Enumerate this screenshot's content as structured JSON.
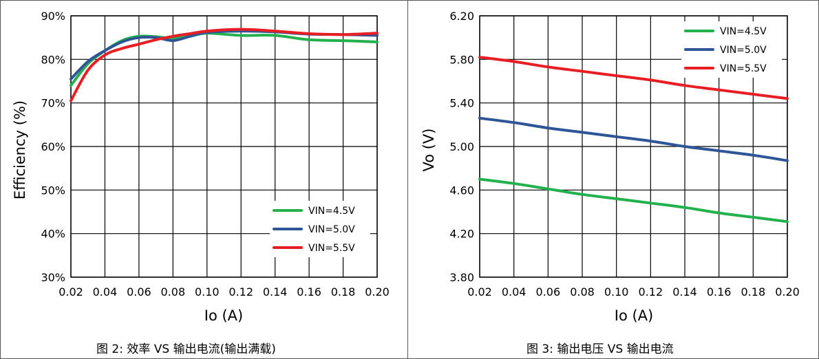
{
  "chart_data": [
    {
      "type": "line",
      "caption": "图 2: 效率 VS 输出电流(输出满载)",
      "xlabel": "Io (A)",
      "ylabel": "Efficiency (%)",
      "xlim": [
        0.02,
        0.2
      ],
      "ylim": [
        30,
        90
      ],
      "x_ticks": [
        "0.02",
        "0.04",
        "0.06",
        "0.08",
        "0.10",
        "0.12",
        "0.14",
        "0.16",
        "0.18",
        "0.20"
      ],
      "y_ticks": [
        "30%",
        "40%",
        "50%",
        "60%",
        "70%",
        "80%",
        "90%"
      ],
      "grid": true,
      "legend_position": "bottom-right",
      "series": [
        {
          "name": "VIN=4.5V",
          "color": "#22b14c",
          "x": [
            0.02,
            0.03,
            0.04,
            0.05,
            0.06,
            0.07,
            0.08,
            0.09,
            0.1,
            0.12,
            0.14,
            0.16,
            0.18,
            0.2
          ],
          "y": [
            74.0,
            79.0,
            82.0,
            84.3,
            85.3,
            85.2,
            84.8,
            85.3,
            86.0,
            85.5,
            85.5,
            84.5,
            84.3,
            84.0
          ]
        },
        {
          "name": "VIN=5.0V",
          "color": "#2e5596",
          "x": [
            0.02,
            0.03,
            0.04,
            0.05,
            0.06,
            0.07,
            0.08,
            0.09,
            0.1,
            0.12,
            0.14,
            0.16,
            0.18,
            0.2
          ],
          "y": [
            75.5,
            79.5,
            82.0,
            84.0,
            85.0,
            85.0,
            84.3,
            85.3,
            86.2,
            86.5,
            86.3,
            85.8,
            85.7,
            85.5
          ]
        },
        {
          "name": "VIN=5.5V",
          "color": "#e81e25",
          "x": [
            0.02,
            0.03,
            0.04,
            0.05,
            0.06,
            0.07,
            0.08,
            0.09,
            0.1,
            0.12,
            0.14,
            0.16,
            0.18,
            0.2
          ],
          "y": [
            70.5,
            77.5,
            81.0,
            82.5,
            83.5,
            84.5,
            85.3,
            85.9,
            86.5,
            86.9,
            86.5,
            85.9,
            85.7,
            86.0
          ]
        }
      ]
    },
    {
      "type": "line",
      "caption": "图 3: 输出电压 VS 输出电流",
      "xlabel": "Io (A)",
      "ylabel": "Vo (V)",
      "xlim": [
        0.02,
        0.2
      ],
      "ylim": [
        3.8,
        6.2
      ],
      "x_ticks": [
        "0.02",
        "0.04",
        "0.06",
        "0.08",
        "0.10",
        "0.12",
        "0.14",
        "0.16",
        "0.18",
        "0.20"
      ],
      "y_ticks": [
        "3.80",
        "4.20",
        "4.60",
        "5.00",
        "5.40",
        "5.80",
        "6.20"
      ],
      "grid": true,
      "legend_position": "top-right",
      "series": [
        {
          "name": "VIN=4.5V",
          "color": "#22b14c",
          "x": [
            0.02,
            0.04,
            0.06,
            0.08,
            0.1,
            0.12,
            0.14,
            0.16,
            0.18,
            0.2
          ],
          "y": [
            4.7,
            4.66,
            4.61,
            4.56,
            4.52,
            4.48,
            4.44,
            4.39,
            4.35,
            4.31
          ]
        },
        {
          "name": "VIN=5.0V",
          "color": "#2e5596",
          "x": [
            0.02,
            0.04,
            0.06,
            0.08,
            0.1,
            0.12,
            0.14,
            0.16,
            0.18,
            0.2
          ],
          "y": [
            5.26,
            5.22,
            5.17,
            5.13,
            5.09,
            5.05,
            5.0,
            4.96,
            4.92,
            4.87
          ]
        },
        {
          "name": "VIN=5.5V",
          "color": "#e81e25",
          "x": [
            0.02,
            0.04,
            0.06,
            0.08,
            0.1,
            0.12,
            0.14,
            0.16,
            0.18,
            0.2
          ],
          "y": [
            5.82,
            5.78,
            5.73,
            5.69,
            5.65,
            5.61,
            5.56,
            5.52,
            5.48,
            5.44
          ]
        }
      ]
    }
  ]
}
